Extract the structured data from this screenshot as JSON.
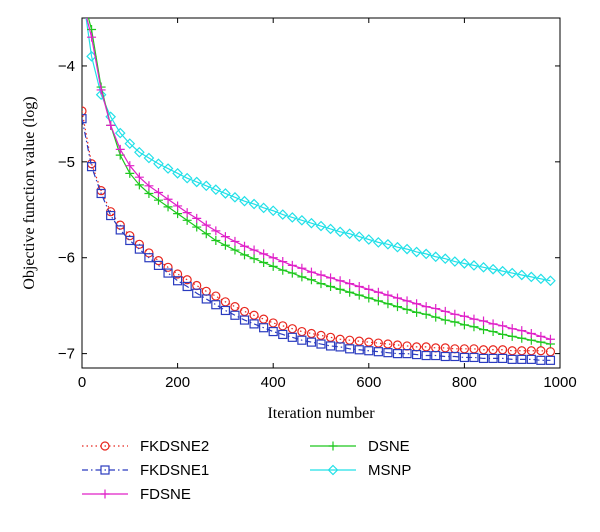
{
  "chart_data": {
    "type": "line",
    "xlabel": "Iteration number",
    "ylabel": "Objective function value (log)",
    "xlim": [
      0,
      1000
    ],
    "ylim": [
      -7.15,
      -3.5
    ],
    "xticks": [
      0,
      200,
      400,
      600,
      800,
      1000
    ],
    "yticks": [
      -7,
      -6,
      -5,
      -4
    ],
    "ytick_labels": [
      "−7",
      "−6",
      "−5",
      "−4"
    ],
    "grid": false,
    "legend_position": "bottom",
    "series": [
      {
        "name": "FKDSNE2",
        "color": "#e8261e",
        "line": "dotted",
        "marker": "circle",
        "x": [
          0,
          20,
          40,
          60,
          80,
          100,
          120,
          140,
          160,
          180,
          200,
          220,
          240,
          260,
          280,
          300,
          320,
          340,
          360,
          380,
          400,
          420,
          440,
          460,
          480,
          500,
          520,
          540,
          560,
          580,
          600,
          620,
          640,
          660,
          680,
          700,
          720,
          740,
          760,
          780,
          800,
          820,
          840,
          860,
          880,
          900,
          920,
          940,
          960,
          980
        ],
        "y": [
          -4.47,
          -5.02,
          -5.3,
          -5.52,
          -5.66,
          -5.77,
          -5.86,
          -5.95,
          -6.03,
          -6.1,
          -6.17,
          -6.23,
          -6.29,
          -6.35,
          -6.4,
          -6.46,
          -6.51,
          -6.56,
          -6.6,
          -6.64,
          -6.68,
          -6.71,
          -6.74,
          -6.77,
          -6.79,
          -6.81,
          -6.83,
          -6.85,
          -6.86,
          -6.87,
          -6.88,
          -6.89,
          -6.9,
          -6.91,
          -6.92,
          -6.93,
          -6.93,
          -6.94,
          -6.94,
          -6.95,
          -6.95,
          -6.95,
          -6.96,
          -6.96,
          -6.96,
          -6.97,
          -6.97,
          -6.97,
          -6.97,
          -6.98
        ]
      },
      {
        "name": "FKDSNE1",
        "color": "#2a3bbf",
        "line": "dashdot",
        "marker": "square",
        "x": [
          0,
          20,
          40,
          60,
          80,
          100,
          120,
          140,
          160,
          180,
          200,
          220,
          240,
          260,
          280,
          300,
          320,
          340,
          360,
          380,
          400,
          420,
          440,
          460,
          480,
          500,
          520,
          540,
          560,
          580,
          600,
          620,
          640,
          660,
          680,
          700,
          720,
          740,
          760,
          780,
          800,
          820,
          840,
          860,
          880,
          900,
          920,
          940,
          960,
          980
        ],
        "y": [
          -4.55,
          -5.05,
          -5.33,
          -5.56,
          -5.71,
          -5.82,
          -5.91,
          -6.0,
          -6.08,
          -6.16,
          -6.24,
          -6.3,
          -6.37,
          -6.43,
          -6.49,
          -6.55,
          -6.6,
          -6.65,
          -6.69,
          -6.73,
          -6.77,
          -6.8,
          -6.83,
          -6.86,
          -6.88,
          -6.9,
          -6.92,
          -6.93,
          -6.95,
          -6.96,
          -6.97,
          -6.98,
          -6.99,
          -7.0,
          -7.0,
          -7.01,
          -7.02,
          -7.02,
          -7.03,
          -7.03,
          -7.04,
          -7.04,
          -7.05,
          -7.05,
          -7.05,
          -7.06,
          -7.06,
          -7.06,
          -7.07,
          -7.07
        ]
      },
      {
        "name": "FDSNE",
        "color": "#e020c8",
        "line": "solid",
        "marker": "plus",
        "x": [
          0,
          20,
          40,
          60,
          80,
          100,
          120,
          140,
          160,
          180,
          200,
          220,
          240,
          260,
          280,
          300,
          320,
          340,
          360,
          380,
          400,
          420,
          440,
          460,
          480,
          500,
          520,
          540,
          560,
          580,
          600,
          620,
          640,
          660,
          680,
          700,
          720,
          740,
          760,
          780,
          800,
          820,
          840,
          860,
          880,
          900,
          920,
          940,
          960,
          980
        ],
        "y": [
          -3.3,
          -3.7,
          -4.25,
          -4.62,
          -4.87,
          -5.04,
          -5.16,
          -5.25,
          -5.32,
          -5.39,
          -5.46,
          -5.53,
          -5.59,
          -5.66,
          -5.72,
          -5.78,
          -5.83,
          -5.88,
          -5.92,
          -5.96,
          -6.0,
          -6.04,
          -6.08,
          -6.11,
          -6.15,
          -6.18,
          -6.21,
          -6.24,
          -6.27,
          -6.3,
          -6.33,
          -6.36,
          -6.39,
          -6.42,
          -6.45,
          -6.48,
          -6.51,
          -6.53,
          -6.56,
          -6.59,
          -6.61,
          -6.64,
          -6.66,
          -6.69,
          -6.71,
          -6.74,
          -6.76,
          -6.79,
          -6.82,
          -6.85
        ]
      },
      {
        "name": "DSNE",
        "color": "#1ec81e",
        "line": "solid",
        "marker": "plus",
        "x": [
          0,
          20,
          40,
          60,
          80,
          100,
          120,
          140,
          160,
          180,
          200,
          220,
          240,
          260,
          280,
          300,
          320,
          340,
          360,
          380,
          400,
          420,
          440,
          460,
          480,
          500,
          520,
          540,
          560,
          580,
          600,
          620,
          640,
          660,
          680,
          700,
          720,
          740,
          760,
          780,
          800,
          820,
          840,
          860,
          880,
          900,
          920,
          940,
          960,
          980
        ],
        "y": [
          -3.25,
          -3.62,
          -4.22,
          -4.62,
          -4.93,
          -5.12,
          -5.24,
          -5.33,
          -5.4,
          -5.47,
          -5.54,
          -5.61,
          -5.68,
          -5.75,
          -5.82,
          -5.87,
          -5.92,
          -5.97,
          -6.01,
          -6.05,
          -6.09,
          -6.13,
          -6.16,
          -6.2,
          -6.23,
          -6.27,
          -6.3,
          -6.33,
          -6.36,
          -6.39,
          -6.42,
          -6.45,
          -6.48,
          -6.51,
          -6.54,
          -6.57,
          -6.59,
          -6.62,
          -6.65,
          -6.67,
          -6.7,
          -6.72,
          -6.75,
          -6.77,
          -6.8,
          -6.82,
          -6.84,
          -6.86,
          -6.88,
          -6.9
        ]
      },
      {
        "name": "MSNP",
        "color": "#22e0e8",
        "line": "solid",
        "marker": "diamond",
        "x": [
          0,
          20,
          40,
          60,
          80,
          100,
          120,
          140,
          160,
          180,
          200,
          220,
          240,
          260,
          280,
          300,
          320,
          340,
          360,
          380,
          400,
          420,
          440,
          460,
          480,
          500,
          520,
          540,
          560,
          580,
          600,
          620,
          640,
          660,
          680,
          700,
          720,
          740,
          760,
          780,
          800,
          820,
          840,
          860,
          880,
          900,
          920,
          940,
          960,
          980
        ],
        "y": [
          -3.2,
          -3.9,
          -4.3,
          -4.53,
          -4.7,
          -4.81,
          -4.9,
          -4.96,
          -5.02,
          -5.07,
          -5.12,
          -5.17,
          -5.21,
          -5.25,
          -5.29,
          -5.33,
          -5.37,
          -5.41,
          -5.44,
          -5.48,
          -5.51,
          -5.55,
          -5.58,
          -5.61,
          -5.64,
          -5.67,
          -5.7,
          -5.73,
          -5.75,
          -5.78,
          -5.81,
          -5.84,
          -5.86,
          -5.89,
          -5.91,
          -5.94,
          -5.96,
          -5.99,
          -6.01,
          -6.04,
          -6.06,
          -6.08,
          -6.1,
          -6.12,
          -6.14,
          -6.16,
          -6.18,
          -6.2,
          -6.22,
          -6.24
        ]
      }
    ],
    "legend": {
      "columns": [
        [
          "FKDSNE2",
          "FKDSNE1",
          "FDSNE"
        ],
        [
          "DSNE",
          "MSNP"
        ]
      ]
    }
  }
}
